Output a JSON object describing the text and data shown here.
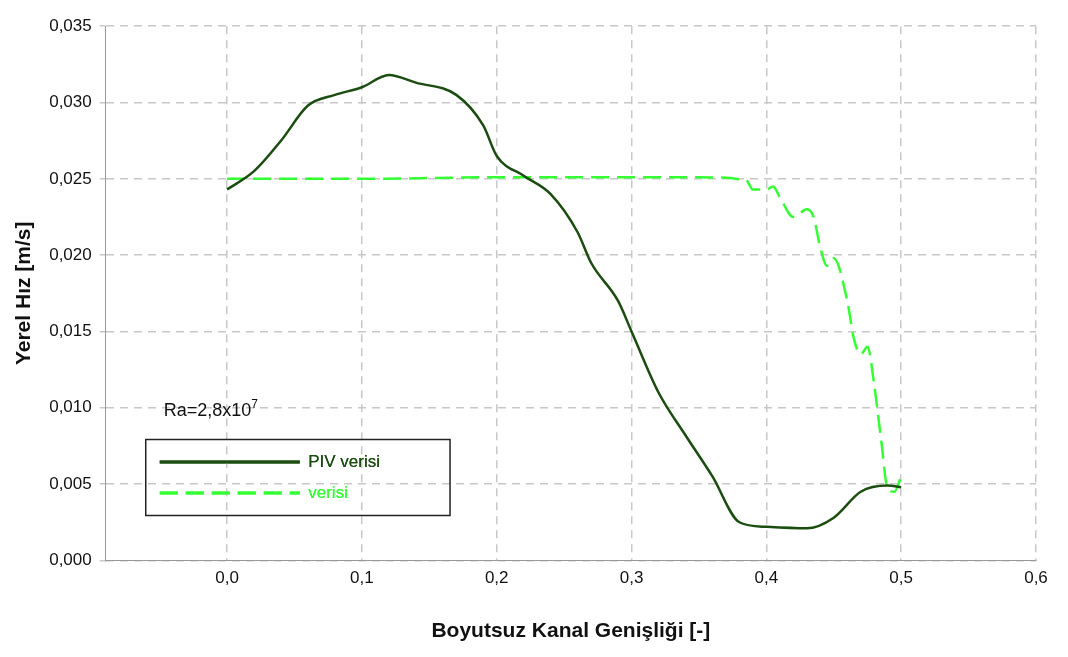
{
  "chart_data": {
    "type": "line",
    "xlabel": "Boyutsuz Kanal Genişliği [-]",
    "ylabel": "Yerel Hız [m/s]",
    "xlim": [
      -0.09,
      0.6
    ],
    "xticks": [
      {
        "value": 0,
        "label": "0,0"
      },
      {
        "value": 0.1,
        "label": "0,1"
      },
      {
        "value": 0.2,
        "label": "0,2"
      },
      {
        "value": 0.3,
        "label": "0,3"
      },
      {
        "value": 0.4,
        "label": "0,4"
      },
      {
        "value": 0.5,
        "label": "0,5"
      },
      {
        "value": 0.6,
        "label": "0,6"
      }
    ],
    "ylim": [
      0,
      0.035
    ],
    "yticks": [
      {
        "value": 0,
        "label": "0,000"
      },
      {
        "value": 0.005,
        "label": "0,005"
      },
      {
        "value": 0.01,
        "label": "0,010"
      },
      {
        "value": 0.015,
        "label": "0,015"
      },
      {
        "value": 0.02,
        "label": "0,020"
      },
      {
        "value": 0.025,
        "label": "0,025"
      },
      {
        "value": 0.03,
        "label": "0,030"
      },
      {
        "value": 0.035,
        "label": "0,035"
      }
    ],
    "grid": true,
    "legend": "bottom left",
    "marker": "none",
    "annotations": [
      "Ra=2,8x10$^{7}$"
    ],
    "series": [
      {
        "name": "PIV verisi",
        "color": "#1a4d0f",
        "line_style": "solid",
        "x": [
          0,
          0.02,
          0.04,
          0.06,
          0.08,
          0.1,
          0.12,
          0.14,
          0.17,
          0.19,
          0.2,
          0.22,
          0.24,
          0.26,
          0.27,
          0.29,
          0.3,
          0.32,
          0.34,
          0.36,
          0.38,
          0.4,
          0.43,
          0.45,
          0.47,
          0.49,
          0.5
        ],
        "values": [
          0.0243,
          0.0255,
          0.0275,
          0.0298,
          0.0305,
          0.031,
          0.0318,
          0.0313,
          0.0305,
          0.0285,
          0.0265,
          0.0252,
          0.024,
          0.0215,
          0.0195,
          0.017,
          0.015,
          0.011,
          0.0082,
          0.0055,
          0.0025,
          0.0022,
          0.0021,
          0.0028,
          0.0045,
          0.0049,
          0.0048
        ]
      },
      {
        "name": "verisi",
        "color": "#33ff33",
        "line_style": "dashed",
        "x": [
          0,
          0.1,
          0.2,
          0.35,
          0.385,
          0.39,
          0.4,
          0.405,
          0.41,
          0.42,
          0.43,
          0.435,
          0.44,
          0.445,
          0.45,
          0.46,
          0.465,
          0.47,
          0.475,
          0.48,
          0.485,
          0.49,
          0.495,
          0.5
        ],
        "values": [
          0.025,
          0.025,
          0.0251,
          0.0251,
          0.0249,
          0.0243,
          0.0243,
          0.0245,
          0.0238,
          0.0225,
          0.023,
          0.0225,
          0.0205,
          0.0193,
          0.0198,
          0.017,
          0.0145,
          0.0135,
          0.014,
          0.0115,
          0.008,
          0.0047,
          0.0045,
          0.0055
        ]
      }
    ]
  }
}
